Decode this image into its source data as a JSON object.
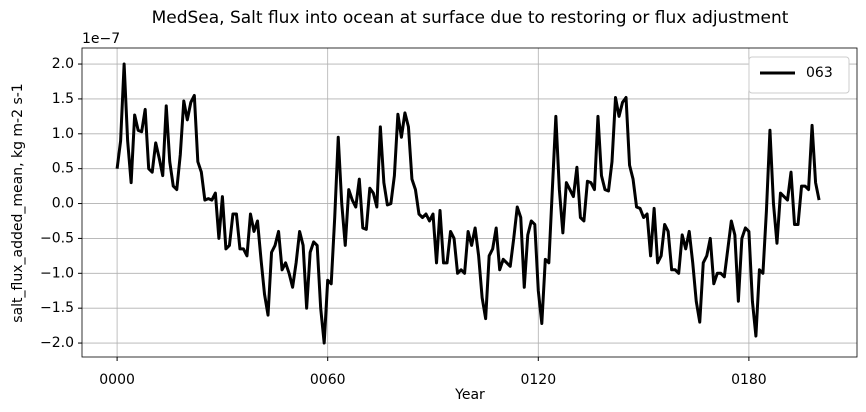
{
  "chart_data": {
    "type": "line",
    "title": "MedSea, Salt flux into ocean at surface due to restoring or flux adjustment",
    "xlabel": "Year",
    "ylabel": "salt_flux_added_mean, kg m-2 s-1",
    "offset_text": "1e−7",
    "x": [
      0,
      1,
      2,
      3,
      4,
      5,
      6,
      7,
      8,
      9,
      10,
      11,
      12,
      13,
      14,
      15,
      16,
      17,
      18,
      19,
      20,
      21,
      22,
      23,
      24,
      25,
      26,
      27,
      28,
      29,
      30,
      31,
      32,
      33,
      34,
      35,
      36,
      37,
      38,
      39,
      40,
      41,
      42,
      43,
      44,
      45,
      46,
      47,
      48,
      49,
      50,
      51,
      52,
      53,
      54,
      55,
      56,
      57,
      58,
      59,
      60,
      61,
      62,
      63,
      64,
      65,
      66,
      67,
      68,
      69,
      70,
      71,
      72,
      73,
      74,
      75,
      76,
      77,
      78,
      79,
      80,
      81,
      82,
      83,
      84,
      85,
      86,
      87,
      88,
      89,
      90,
      91,
      92,
      93,
      94,
      95,
      96,
      97,
      98,
      99,
      100,
      101,
      102,
      103,
      104,
      105,
      106,
      107,
      108,
      109,
      110,
      111,
      112,
      113,
      114,
      115,
      116,
      117,
      118,
      119,
      120,
      121,
      122,
      123,
      124,
      125,
      126,
      127,
      128,
      129,
      130,
      131,
      132,
      133,
      134,
      135,
      136,
      137,
      138,
      139,
      140,
      141,
      142,
      143,
      144,
      145,
      146,
      147,
      148,
      149,
      150,
      151,
      152,
      153,
      154,
      155,
      156,
      157,
      158,
      159,
      160,
      161,
      162,
      163,
      164,
      165,
      166,
      167,
      168,
      169,
      170,
      171,
      172,
      173,
      174,
      175,
      176,
      177,
      178,
      179,
      180,
      181,
      182,
      183,
      184,
      185,
      186,
      187,
      188,
      189,
      190,
      191,
      192,
      193,
      194,
      195,
      196,
      197,
      198,
      199,
      200
    ],
    "series": [
      {
        "name": "063",
        "color": "#000000",
        "values": [
          0.5,
          0.9,
          2.0,
          0.9,
          0.3,
          1.27,
          1.05,
          1.03,
          1.35,
          0.5,
          0.45,
          0.87,
          0.65,
          0.4,
          1.4,
          0.6,
          0.25,
          0.2,
          0.7,
          1.47,
          1.2,
          1.45,
          1.55,
          0.6,
          0.45,
          0.05,
          0.07,
          0.05,
          0.15,
          -0.5,
          0.1,
          -0.65,
          -0.6,
          -0.15,
          -0.15,
          -0.65,
          -0.65,
          -0.75,
          -0.15,
          -0.4,
          -0.25,
          -0.8,
          -1.3,
          -1.6,
          -0.7,
          -0.6,
          -0.4,
          -0.95,
          -0.85,
          -1.0,
          -1.2,
          -0.85,
          -0.4,
          -0.6,
          -1.5,
          -0.7,
          -0.55,
          -0.6,
          -1.5,
          -2.0,
          -1.1,
          -1.15,
          -0.2,
          0.95,
          0.0,
          -0.6,
          0.2,
          0.05,
          -0.05,
          0.35,
          -0.35,
          -0.37,
          0.22,
          0.15,
          -0.05,
          1.1,
          0.3,
          -0.02,
          0.0,
          0.4,
          1.28,
          0.95,
          1.3,
          1.1,
          0.35,
          0.2,
          -0.15,
          -0.2,
          -0.15,
          -0.25,
          -0.15,
          -0.85,
          -0.1,
          -0.85,
          -0.85,
          -0.4,
          -0.5,
          -1.0,
          -0.95,
          -1.0,
          -0.4,
          -0.6,
          -0.35,
          -0.75,
          -1.35,
          -1.65,
          -0.75,
          -0.65,
          -0.35,
          -0.95,
          -0.8,
          -0.85,
          -0.9,
          -0.5,
          -0.05,
          -0.2,
          -1.2,
          -0.45,
          -0.25,
          -0.3,
          -1.25,
          -1.72,
          -0.8,
          -0.85,
          0.2,
          1.25,
          0.2,
          -0.42,
          0.3,
          0.2,
          0.1,
          0.52,
          -0.2,
          -0.25,
          0.32,
          0.3,
          0.2,
          1.25,
          0.4,
          0.2,
          0.18,
          0.6,
          1.52,
          1.25,
          1.45,
          1.52,
          0.55,
          0.35,
          -0.05,
          -0.07,
          -0.2,
          -0.15,
          -0.75,
          -0.07,
          -0.85,
          -0.75,
          -0.3,
          -0.4,
          -0.95,
          -0.95,
          -1.0,
          -0.45,
          -0.65,
          -0.4,
          -0.85,
          -1.4,
          -1.7,
          -0.85,
          -0.75,
          -0.5,
          -1.15,
          -1.0,
          -1.0,
          -1.05,
          -0.65,
          -0.25,
          -0.45,
          -1.4,
          -0.5,
          -0.35,
          -0.4,
          -1.4,
          -1.9,
          -0.95,
          -1.0,
          -0.1,
          1.05,
          0.0,
          -0.57,
          0.15,
          0.1,
          0.05,
          0.45,
          -0.3,
          -0.3,
          0.25,
          0.25,
          0.2,
          1.12,
          0.3,
          0.05
        ]
      }
    ],
    "xlim": [
      -10,
      210.8
    ],
    "xticks": [
      {
        "value": 0,
        "label": "0000"
      },
      {
        "value": 60,
        "label": "0060"
      },
      {
        "value": 120,
        "label": "0120"
      },
      {
        "value": 180,
        "label": "0180"
      }
    ],
    "ylim": [
      -2.2,
      2.23
    ],
    "yticks": [
      {
        "value": -2,
        "label": "−2.0"
      },
      {
        "value": -1.5,
        "label": "−1.5"
      },
      {
        "value": -1,
        "label": "−1.0"
      },
      {
        "value": -0.5,
        "label": "−0.5"
      },
      {
        "value": 0,
        "label": "0.0"
      },
      {
        "value": 0.5,
        "label": "0.5"
      },
      {
        "value": 1,
        "label": "1.0"
      },
      {
        "value": 1.5,
        "label": "1.5"
      },
      {
        "value": 2,
        "label": "2.0"
      }
    ],
    "grid": true,
    "legend": "upper right"
  }
}
